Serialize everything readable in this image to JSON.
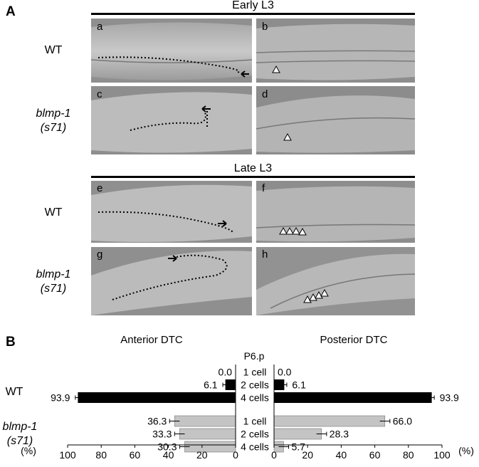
{
  "panel_a": {
    "letter": "A",
    "groups": [
      {
        "title": "Early L3",
        "rows": [
          {
            "label_lines": [
              "WT"
            ],
            "italic": false,
            "images": [
              "a",
              "b"
            ]
          },
          {
            "label_lines": [
              "blmp-1",
              "(s71)"
            ],
            "italic": true,
            "images": [
              "c",
              "d"
            ]
          }
        ]
      },
      {
        "title": "Late L3",
        "rows": [
          {
            "label_lines": [
              "WT"
            ],
            "italic": false,
            "images": [
              "e",
              "f"
            ]
          },
          {
            "label_lines": [
              "blmp-1",
              "(s71)"
            ],
            "italic": true,
            "images": [
              "g",
              "h"
            ]
          }
        ]
      }
    ]
  },
  "panel_b": {
    "letter": "B",
    "left_title": "Anterior DTC",
    "right_title": "Posterior DTC",
    "center_title": "P6.p",
    "axis_unit": "(%)",
    "chart_data": {
      "type": "bar",
      "orientation": "horizontal-butterfly",
      "categories": [
        "1 cell",
        "2 cells",
        "4 cells"
      ],
      "groups": [
        {
          "label_lines": [
            "WT"
          ],
          "italic": false,
          "color": "#000000",
          "anterior": [
            0.0,
            6.1,
            93.9
          ],
          "posterior": [
            0.0,
            6.1,
            93.9
          ],
          "anterior_labels": [
            "0.0",
            "6.1",
            "93.9"
          ],
          "posterior_labels": [
            "0.0",
            "6.1",
            "93.9"
          ],
          "category_labels": [
            "1 cell",
            "2 cells",
            "4 cells"
          ]
        },
        {
          "label_lines": [
            "blmp-1",
            "(s71)"
          ],
          "italic": true,
          "color": "#c4c4c4",
          "anterior": [
            36.3,
            33.3,
            30.3
          ],
          "posterior": [
            66.0,
            28.3,
            5.7
          ],
          "anterior_labels": [
            "36.3",
            "33.3",
            "30.3"
          ],
          "posterior_labels": [
            "66.0",
            "28.3",
            "5.7"
          ],
          "category_labels": [
            "1 cell",
            "2 cells",
            "4 cells"
          ]
        }
      ],
      "xlim": [
        0,
        100
      ],
      "ticks": [
        0,
        20,
        40,
        60,
        80,
        100
      ],
      "tick_labels_left": [
        "100",
        "80",
        "60",
        "40",
        "20",
        "0"
      ],
      "tick_labels_right": [
        "0",
        "20",
        "40",
        "60",
        "80",
        "100"
      ]
    }
  }
}
